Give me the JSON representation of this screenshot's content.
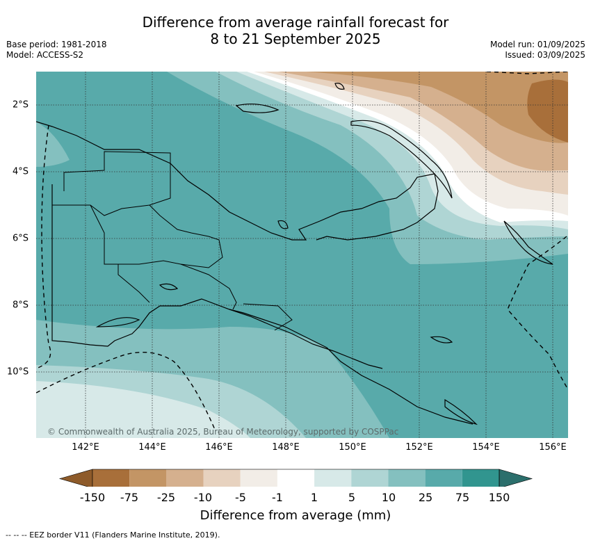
{
  "title_line1": "Difference from average rainfall forecast for",
  "title_line2": "8 to 21 September 2025",
  "meta": {
    "base_period": "Base period: 1981-2018",
    "model": "Model: ACCESS-S2",
    "model_run": "Model run: 01/09/2025",
    "issued": "Issued: 03/09/2025"
  },
  "lon_labels": [
    "142°E",
    "144°E",
    "146°E",
    "148°E",
    "150°E",
    "152°E",
    "154°E",
    "156°E"
  ],
  "lat_labels": [
    "2°S",
    "4°S",
    "6°S",
    "8°S",
    "10°S"
  ],
  "colorbar": {
    "ticks": [
      "-150",
      "-75",
      "-25",
      "-10",
      "-5",
      "-1",
      "1",
      "5",
      "10",
      "25",
      "75",
      "150"
    ],
    "colors": [
      "#a86f3a",
      "#c39565",
      "#d5b08e",
      "#e7d2bf",
      "#f2ede7",
      "#ffffff",
      "#d7e9e8",
      "#afd5d4",
      "#84c0bf",
      "#58aaaa",
      "#31958f"
    ],
    "end_low": "#8e5b2a",
    "end_high": "#2b6f6c",
    "label": "Difference from average (mm)"
  },
  "copyright": "© Commonwealth of Australia 2025, Bureau of Meteorology, supported by COSPPac",
  "footnote": "--  --  -- EEZ border V11 (Flanders Marine Institute, 2019)."
}
